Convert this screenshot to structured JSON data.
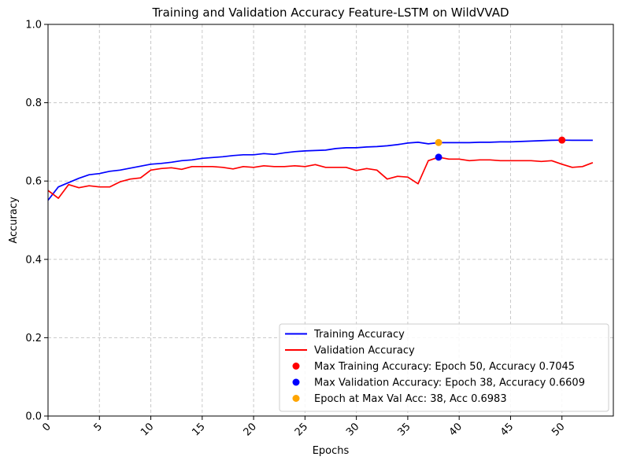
{
  "chart_data": {
    "type": "line",
    "title": "Training and Validation Accuracy Feature-LSTM on WildVVAD",
    "xlabel": "Epochs",
    "ylabel": "Accuracy",
    "xlim": [
      0,
      55
    ],
    "ylim": [
      0,
      1.0
    ],
    "xticks": [
      "0",
      "5",
      "10",
      "15",
      "20",
      "25",
      "30",
      "35",
      "40",
      "45",
      "50"
    ],
    "yticks": [
      "0.0",
      "0.2",
      "0.4",
      "0.6",
      "0.8",
      "1.0"
    ],
    "grid": true,
    "legend_position": "lower-right",
    "x": [
      0,
      1,
      2,
      3,
      4,
      5,
      6,
      7,
      8,
      9,
      10,
      11,
      12,
      13,
      14,
      15,
      16,
      17,
      18,
      19,
      20,
      21,
      22,
      23,
      24,
      25,
      26,
      27,
      28,
      29,
      30,
      31,
      32,
      33,
      34,
      35,
      36,
      37,
      38,
      39,
      40,
      41,
      42,
      43,
      44,
      45,
      46,
      47,
      48,
      49,
      50,
      51,
      52,
      53
    ],
    "series": [
      {
        "name": "Training Accuracy",
        "color": "#0000ff",
        "values": [
          0.551,
          0.585,
          0.596,
          0.607,
          0.616,
          0.619,
          0.625,
          0.628,
          0.633,
          0.638,
          0.643,
          0.645,
          0.648,
          0.652,
          0.654,
          0.658,
          0.66,
          0.662,
          0.665,
          0.667,
          0.667,
          0.67,
          0.668,
          0.672,
          0.675,
          0.677,
          0.678,
          0.679,
          0.683,
          0.685,
          0.685,
          0.687,
          0.688,
          0.69,
          0.693,
          0.697,
          0.699,
          0.695,
          0.698,
          0.698,
          0.698,
          0.698,
          0.699,
          0.699,
          0.7,
          0.7,
          0.701,
          0.702,
          0.703,
          0.704,
          0.7045,
          0.704,
          0.704,
          0.704
        ]
      },
      {
        "name": "Validation Accuracy",
        "color": "#ff0000",
        "values": [
          0.576,
          0.556,
          0.591,
          0.583,
          0.588,
          0.585,
          0.585,
          0.598,
          0.605,
          0.608,
          0.628,
          0.632,
          0.634,
          0.63,
          0.637,
          0.637,
          0.637,
          0.635,
          0.631,
          0.637,
          0.635,
          0.639,
          0.637,
          0.637,
          0.639,
          0.637,
          0.642,
          0.635,
          0.635,
          0.635,
          0.627,
          0.632,
          0.628,
          0.605,
          0.612,
          0.61,
          0.593,
          0.652,
          0.6609,
          0.656,
          0.656,
          0.652,
          0.654,
          0.654,
          0.652,
          0.652,
          0.652,
          0.652,
          0.65,
          0.652,
          0.643,
          0.635,
          0.637,
          0.647
        ]
      }
    ],
    "markers": [
      {
        "label": "Max Training Accuracy: Epoch 50, Accuracy 0.7045",
        "x": 50,
        "y": 0.7045,
        "color": "#ff0000"
      },
      {
        "label": "Max Validation Accuracy: Epoch 38, Accuracy 0.6609",
        "x": 38,
        "y": 0.6609,
        "color": "#0000ff"
      },
      {
        "label": "Epoch at Max Val Acc: 38, Acc 0.6983",
        "x": 38,
        "y": 0.6983,
        "color": "#ffa500"
      }
    ]
  }
}
